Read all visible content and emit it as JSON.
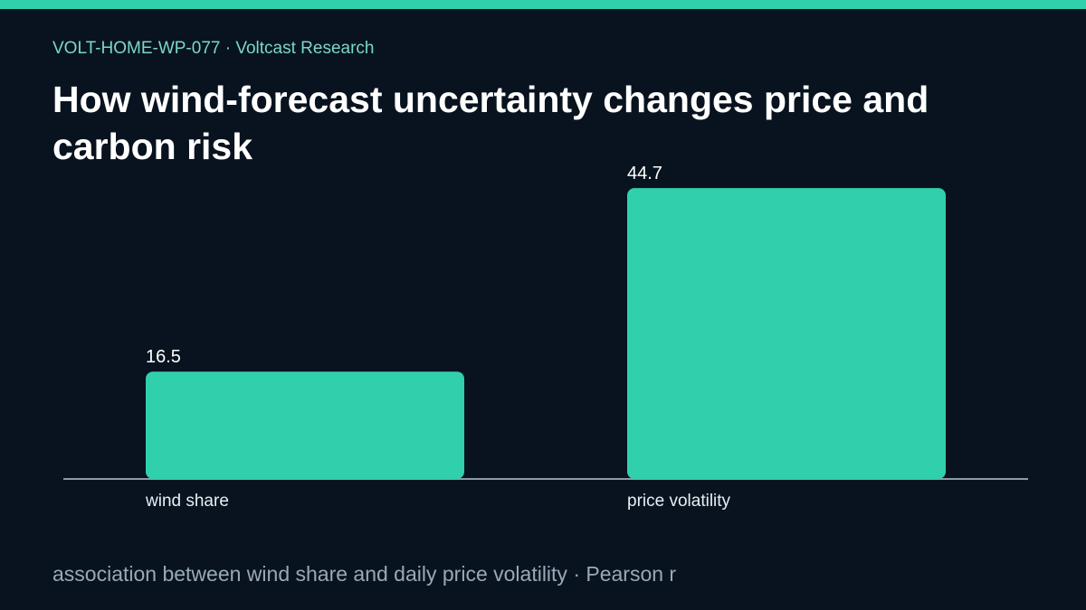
{
  "header": {
    "kicker": "VOLT-HOME-WP-077 · Voltcast Research",
    "title": "How wind-forecast uncertainty changes price and carbon risk"
  },
  "footer": {
    "note": "association between wind share and daily price volatility · Pearson r"
  },
  "colors": {
    "background": "#08131f",
    "accent": "#31d0ad",
    "axis": "#8e9aa8",
    "text": "#ffffff",
    "muted_text": "#9aa8b7"
  },
  "chart_data": {
    "type": "bar",
    "categories": [
      "wind share",
      "price volatility"
    ],
    "values": [
      16.5,
      44.7
    ],
    "data_labels": [
      "16.5",
      "44.7"
    ],
    "title": "",
    "xlabel": "",
    "ylabel": "",
    "ylim": [
      0,
      50
    ],
    "grid": false,
    "legend": "none"
  }
}
